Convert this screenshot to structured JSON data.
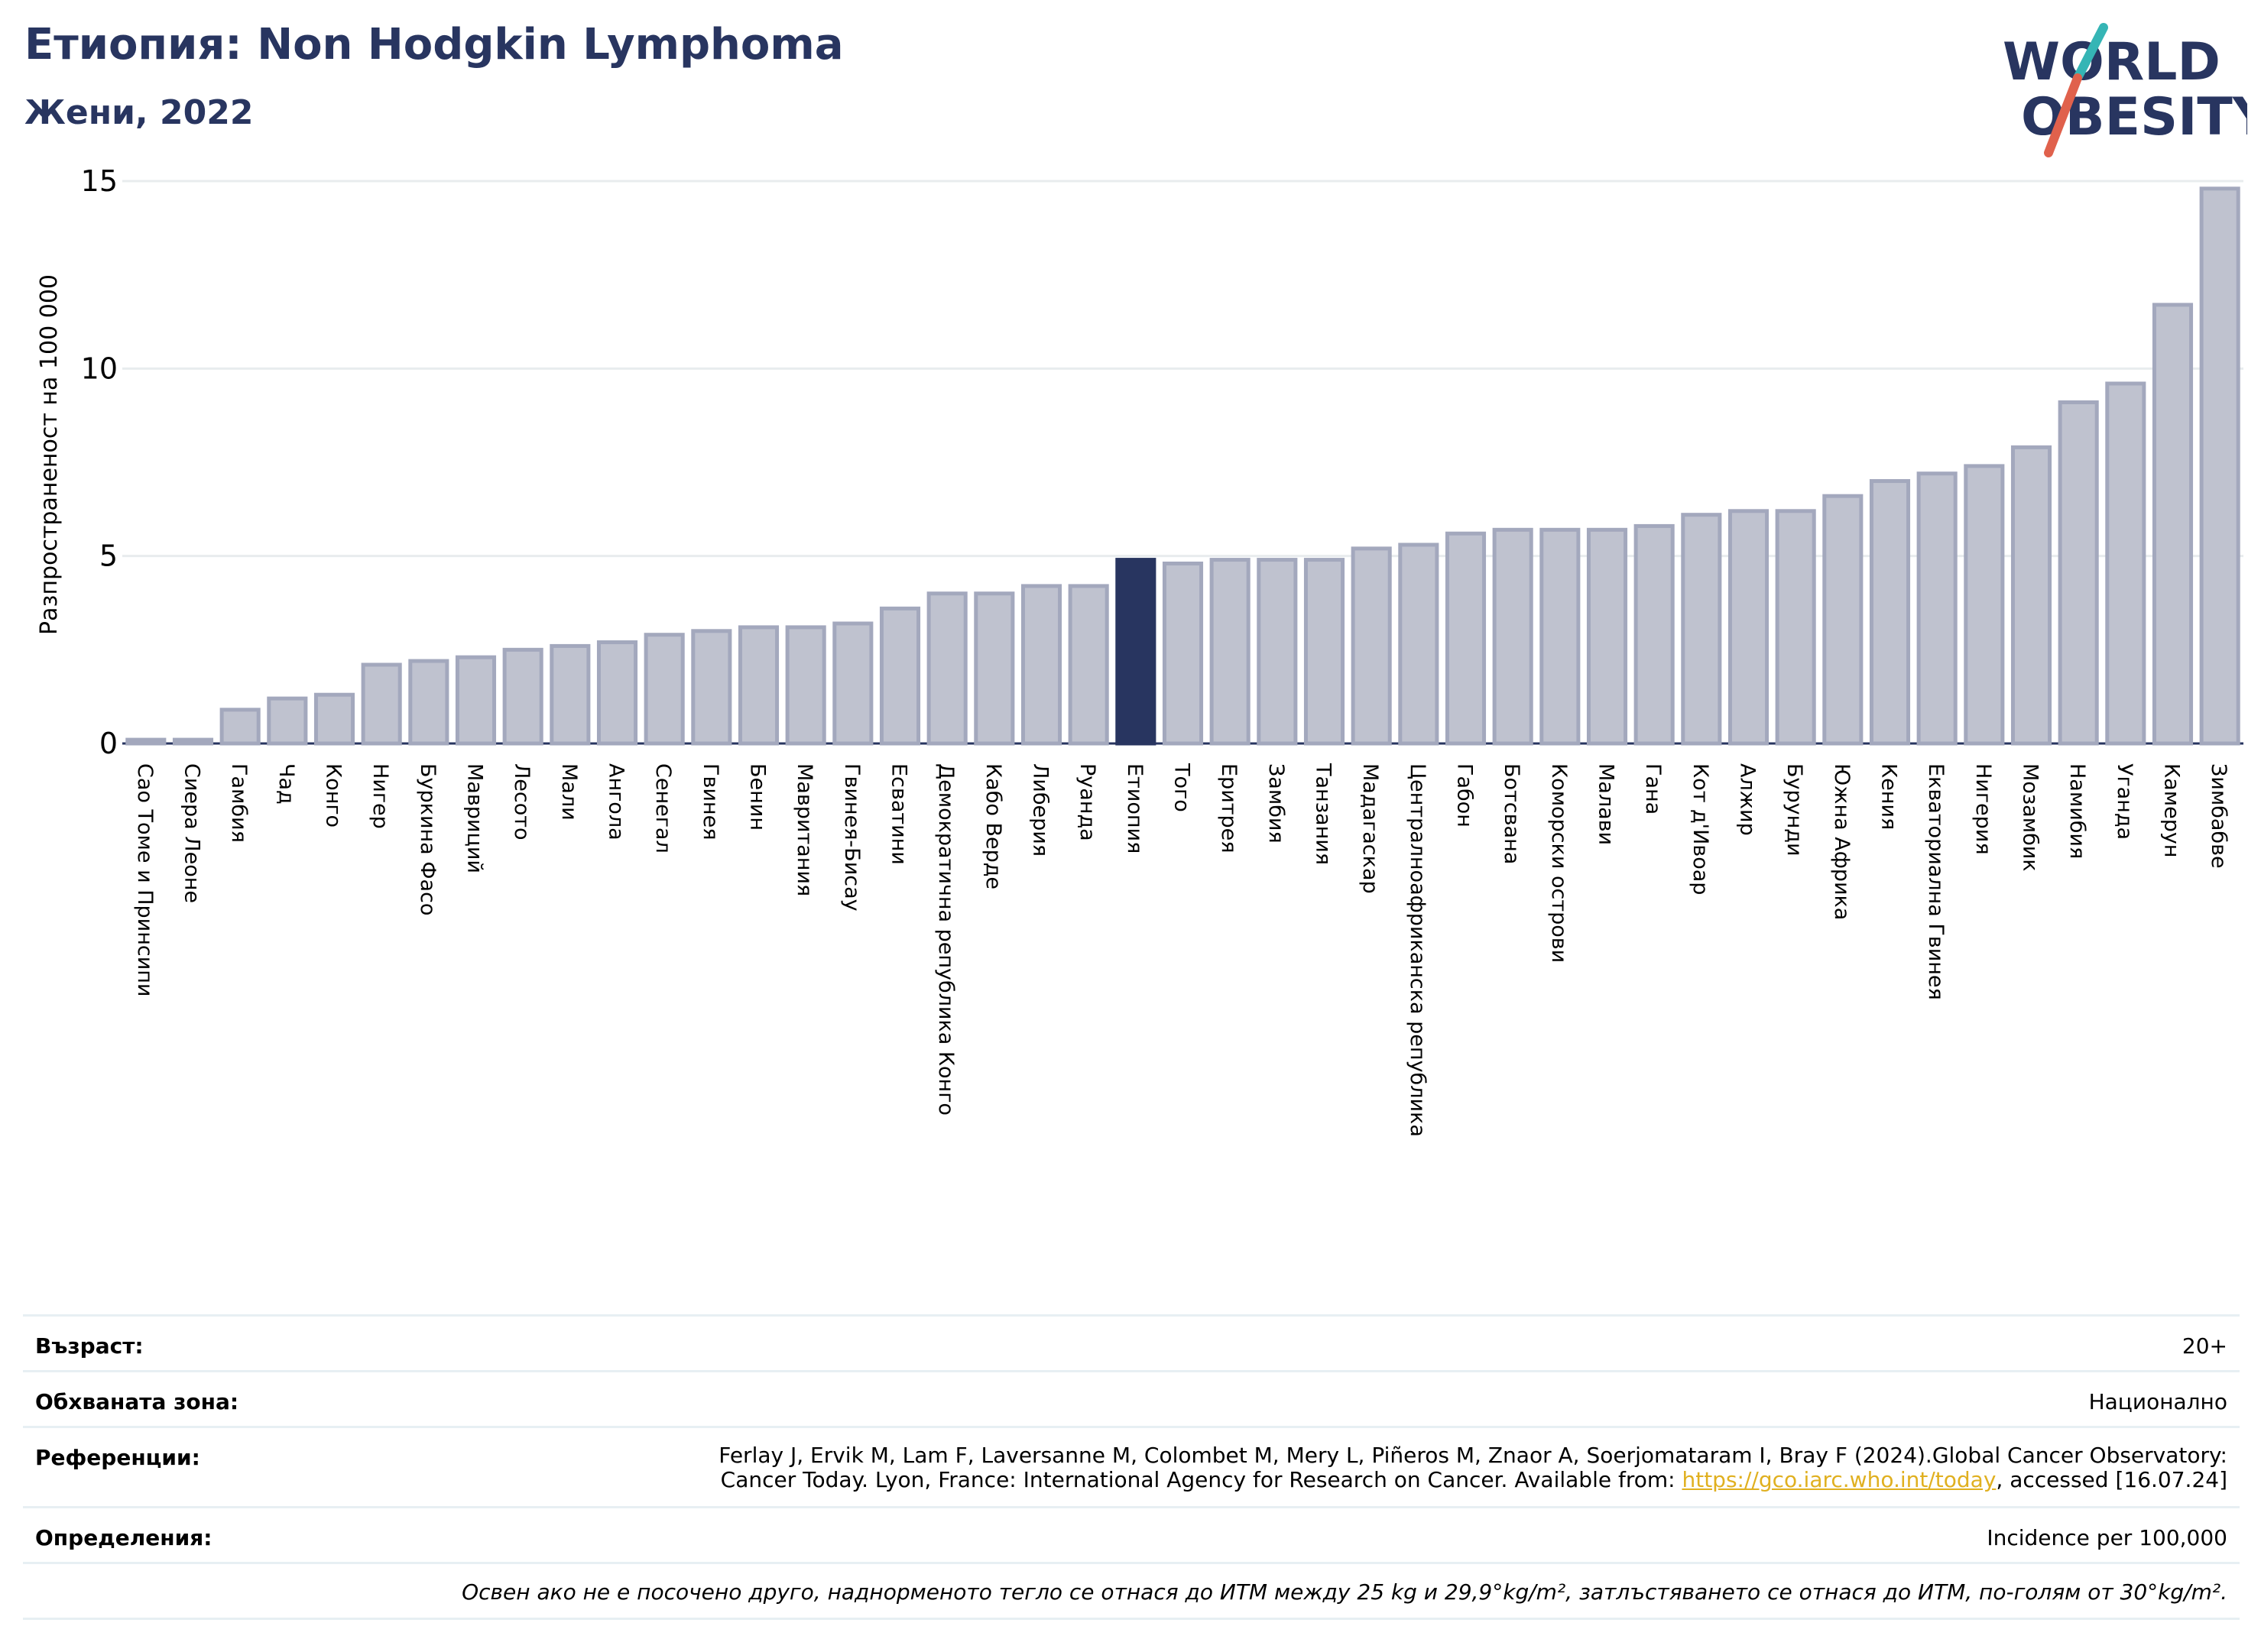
{
  "header": {
    "title": "Етиопия: Non Hodgkin Lymphoma",
    "subtitle": "Жени, 2022"
  },
  "logo": {
    "line1": "WORLD",
    "line2": "OBESITY"
  },
  "chart_data": {
    "type": "bar",
    "ylabel": "Разпространеност  на 100 000",
    "xlabel": "",
    "ylim": [
      0,
      15
    ],
    "yticks": [
      0,
      5,
      10,
      15
    ],
    "grid": true,
    "highlight": "Етиопия",
    "colors": {
      "bar": "#bfc2cf",
      "bar_edge": "#a3a8bd",
      "highlight": "#283560",
      "grid": "#e8ecee"
    },
    "categories": [
      "Сао Томе и Принсипи",
      "Сиера Леоне",
      "Гамбия",
      "Чад",
      "Конго",
      "Нигер",
      "Буркина Фасо",
      "Мавриций",
      "Лесото",
      "Мали",
      "Ангола",
      "Сенегал",
      "Гвинея",
      "Бенин",
      "Мавритания",
      "Гвинея-Бисау",
      "Есватини",
      "Демократична република Конго",
      "Кабо Верде",
      "Либерия",
      "Руанда",
      "Етиопия",
      "Того",
      "Еритрея",
      "Замбия",
      "Танзания",
      "Мадагаскар",
      "Централноафриканска република",
      "Габон",
      "Ботсвана",
      "Коморски острови",
      "Малави",
      "Гана",
      "Кот д'Ивоар",
      "Алжир",
      "Бурунди",
      "Южна Африка",
      "Кения",
      "Екваториална Гвинея",
      "Нигерия",
      "Мозамбик",
      "Намибия",
      "Уганда",
      "Камерун",
      "Зимбабве"
    ],
    "values": [
      0.1,
      0.1,
      0.9,
      1.2,
      1.3,
      2.1,
      2.2,
      2.3,
      2.5,
      2.6,
      2.7,
      2.9,
      3.0,
      3.1,
      3.1,
      3.2,
      3.6,
      4.0,
      4.0,
      4.2,
      4.2,
      4.9,
      4.8,
      4.9,
      4.9,
      4.9,
      5.2,
      5.3,
      5.6,
      5.7,
      5.7,
      5.7,
      5.8,
      6.1,
      6.2,
      6.2,
      6.6,
      7.0,
      7.2,
      7.4,
      7.9,
      9.1,
      9.6,
      11.7,
      14.8
    ]
  },
  "info": {
    "age_label": "Възраст:",
    "age_value": "20+",
    "area_label": "Обхваната зона:",
    "area_value": "Национално",
    "refs_label": "Референции:",
    "refs_line1": "Ferlay J, Ervik M, Lam F, Laversanne M, Colombet M, Mery L, Piñeros M, Znaor A, Soerjomataram I, Bray F (2024).Global Cancer Observatory:",
    "refs_line2_pre": "Cancer Today. Lyon, France: International Agency for Research on Cancer. Available from: ",
    "refs_link": "https://gco.iarc.who.int/today",
    "refs_line2_post": ", accessed [16.07.24]",
    "defs_label": "Определения:",
    "defs_value": "Incidence per 100,000",
    "note": "Освен ако не е посочено друго, наднорменото тегло се отнася до ИТМ между 25 kg и 29,9°kg/m², затлъстяването се отнася до ИТМ, по-голям от 30°kg/m²."
  }
}
